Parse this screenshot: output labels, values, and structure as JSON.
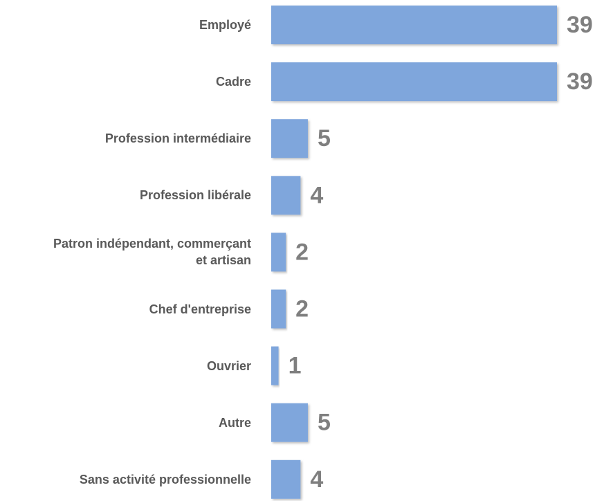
{
  "chart_data": {
    "type": "bar",
    "orientation": "horizontal",
    "categories": [
      "Employé",
      "Cadre",
      "Profession intermédiaire",
      "Profession libérale",
      "Patron indépendant, commerçant et artisan",
      "Chef d'entreprise",
      "Ouvrier",
      "Autre",
      "Sans activité professionnelle"
    ],
    "values": [
      39,
      39,
      5,
      4,
      2,
      2,
      1,
      5,
      4
    ],
    "color": "#7fa6dc"
  }
}
